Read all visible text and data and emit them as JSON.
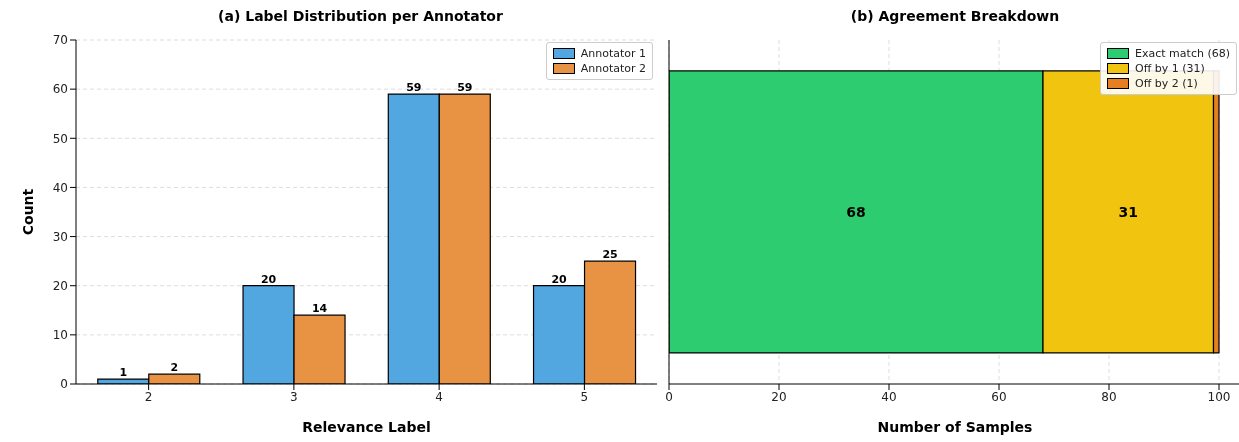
{
  "chart_data": [
    {
      "type": "bar",
      "title": "(a) Label Distribution per Annotator",
      "xlabel": "Relevance Label",
      "ylabel": "Count",
      "categories": [
        "2",
        "3",
        "4",
        "5"
      ],
      "series": [
        {
          "name": "Annotator 1",
          "color": "#52a7e0",
          "values": [
            1,
            20,
            59,
            20
          ]
        },
        {
          "name": "Annotator 2",
          "color": "#e89244",
          "values": [
            2,
            14,
            59,
            25
          ]
        }
      ],
      "ylim": [
        0,
        70
      ],
      "yticks": [
        0,
        10,
        20,
        30,
        40,
        50,
        60,
        70
      ],
      "grid": "y",
      "legend": "top right",
      "data_labels": true
    },
    {
      "type": "bar",
      "title": "(b) Agreement Breakdown",
      "xlabel": "Number of Samples",
      "orientation": "horizontal",
      "stacked": true,
      "categories": [
        null
      ],
      "series": [
        {
          "name": "Exact match (68)",
          "color": "#2ecc71",
          "values": [
            68
          ],
          "value_labels": [
            "68"
          ]
        },
        {
          "name": "Off by 1 (31)",
          "color": "#f1c40f",
          "values": [
            31
          ],
          "value_labels": [
            "31"
          ]
        },
        {
          "name": "Off by 2 (1)",
          "color": "#e67e22",
          "values": [
            1
          ],
          "value_labels": [
            null
          ]
        }
      ],
      "xlim": [
        0,
        104
      ],
      "xticks": [
        0,
        20,
        40,
        60,
        80,
        100
      ],
      "grid": "x",
      "legend": "top right",
      "tick_labels": "x"
    }
  ]
}
